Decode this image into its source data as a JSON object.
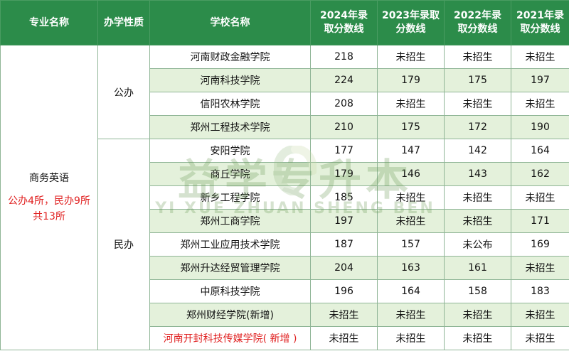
{
  "header": {
    "major": "专业名称",
    "nature": "办学性质",
    "school": "学校名称",
    "y2024": [
      "2024年录",
      "取分数线"
    ],
    "y2023": [
      "2023年录取",
      "分数线"
    ],
    "y2022": [
      "2022年录",
      "取分数线"
    ],
    "y2021": [
      "2021年录",
      "取分数线"
    ]
  },
  "major": {
    "name": "商务英语",
    "summary_line1": "公办4所，民办9所",
    "summary_line2": "共13所"
  },
  "groups": {
    "public": "公办",
    "private": "民办"
  },
  "rows": [
    {
      "school": "河南财政金融学院",
      "y2024": "218",
      "y2023": "未招生",
      "y2022": "未招生",
      "y2021": "未招生"
    },
    {
      "school": "河南科技学院",
      "y2024": "224",
      "y2023": "179",
      "y2022": "175",
      "y2021": "197"
    },
    {
      "school": "信阳农林学院",
      "y2024": "208",
      "y2023": "未招生",
      "y2022": "未招生",
      "y2021": "未招生"
    },
    {
      "school": "郑州工程技术学院",
      "y2024": "210",
      "y2023": "175",
      "y2022": "172",
      "y2021": "190"
    },
    {
      "school": "安阳学院",
      "y2024": "177",
      "y2023": "147",
      "y2022": "142",
      "y2021": "164"
    },
    {
      "school": "商丘学院",
      "y2024": "179",
      "y2023": "146",
      "y2022": "143",
      "y2021": "162"
    },
    {
      "school": "新乡工程学院",
      "y2024": "185",
      "y2023": "未招生",
      "y2022": "未招生",
      "y2021": "未招生"
    },
    {
      "school": "郑州工商学院",
      "y2024": "197",
      "y2023": "未招生",
      "y2022": "未招生",
      "y2021": "171"
    },
    {
      "school": "郑州工业应用技术学院",
      "y2024": "187",
      "y2023": "157",
      "y2022": "未公布",
      "y2021": "169"
    },
    {
      "school": "郑州升达经贸管理学院",
      "y2024": "204",
      "y2023": "163",
      "y2022": "161",
      "y2021": "未招生"
    },
    {
      "school": "中原科技学院",
      "y2024": "196",
      "y2023": "164",
      "y2022": "158",
      "y2021": "183"
    },
    {
      "school": "郑州财经学院(新增)",
      "y2024": "未招生",
      "y2023": "未招生",
      "y2022": "未招生",
      "y2021": "未招生"
    },
    {
      "school": "河南开封科技传媒学院( 新增 )",
      "y2024": "未招生",
      "y2023": "未招生",
      "y2022": "未招生",
      "y2021": "未招生"
    }
  ],
  "watermark": {
    "cn": "益学专升本",
    "en": "YI XUE ZHUAN SHENG BEN"
  },
  "colors": {
    "header_bg": "#2c8c4a",
    "row_shade": "#e4f1db",
    "highlight_red": "#e02020"
  }
}
